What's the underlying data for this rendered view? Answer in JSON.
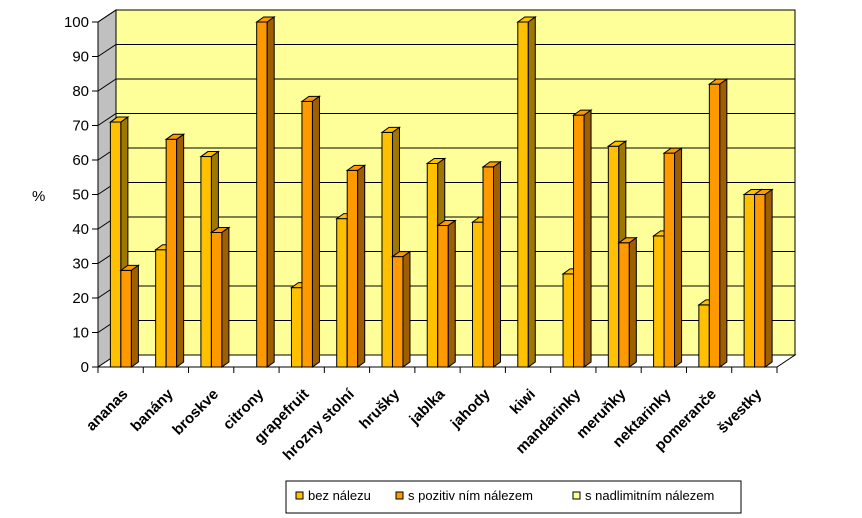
{
  "chart_data": {
    "type": "bar",
    "title": "",
    "xlabel": "",
    "ylabel": "%",
    "ylim": [
      0,
      100
    ],
    "yticks": [
      0,
      10,
      20,
      30,
      40,
      50,
      60,
      70,
      80,
      90,
      100
    ],
    "grid": true,
    "legend_position": "bottom-right",
    "categories": [
      "ananas",
      "banány",
      "broskve",
      "citrony",
      "grapefruit",
      "hrozny stolní",
      "hrušky",
      "jablka",
      "jahody",
      "kiwi",
      "mandarinky",
      "meruňky",
      "nektarinky",
      "pomeranče",
      "švestky"
    ],
    "series": [
      {
        "name": "bez nálezu",
        "color": "#FFC000",
        "values": [
          71,
          34,
          61,
          0,
          23,
          43,
          68,
          59,
          42,
          100,
          27,
          64,
          38,
          18,
          50
        ]
      },
      {
        "name": "s pozitiv ním nálezem",
        "color": "#FF9900",
        "values": [
          28,
          66,
          39,
          100,
          77,
          57,
          32,
          41,
          58,
          0,
          73,
          36,
          62,
          82,
          50
        ]
      },
      {
        "name": "s nadlimitním nálezem",
        "color": "#FFFF99",
        "values": [
          0,
          0,
          0,
          0,
          0,
          0,
          0,
          0,
          0,
          0,
          0,
          0,
          0,
          0,
          0
        ]
      }
    ],
    "colors": {
      "plot_background": "#FFFF99",
      "grid": "#000000",
      "wall_side": "#C0C0C0"
    }
  }
}
